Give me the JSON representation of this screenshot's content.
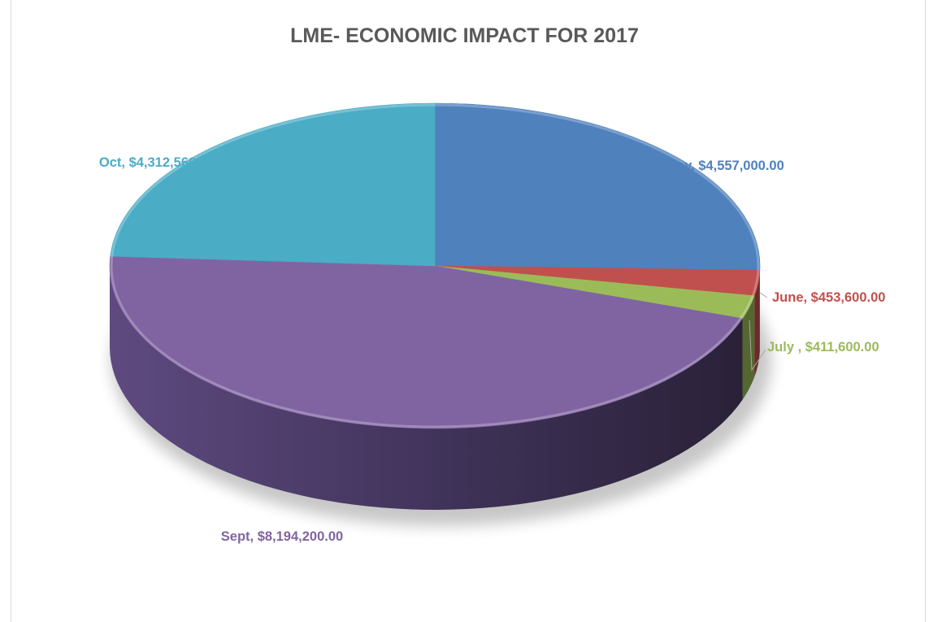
{
  "chart_data": {
    "type": "pie",
    "style": "3d",
    "title": "LME- ECONOMIC IMPACT FOR 2017",
    "categories": [
      "May",
      "June",
      "July ",
      "Sept",
      "Oct"
    ],
    "values": [
      4557000,
      453600,
      411600,
      8194200,
      4312560
    ],
    "labels": [
      "May, $4,557,000.00",
      "June, $453,600.00",
      "July , $411,600.00",
      "Sept, $8,194,200.00",
      "Oct, $4,312,560.00"
    ],
    "colors": [
      "#4f81bd",
      "#c0504d",
      "#9bbb59",
      "#8064a2",
      "#4bacc6"
    ],
    "label_colors": [
      "#4f81bd",
      "#c0504d",
      "#9bbb59",
      "#8064a2",
      "#4bacc6"
    ],
    "legend": "none"
  }
}
